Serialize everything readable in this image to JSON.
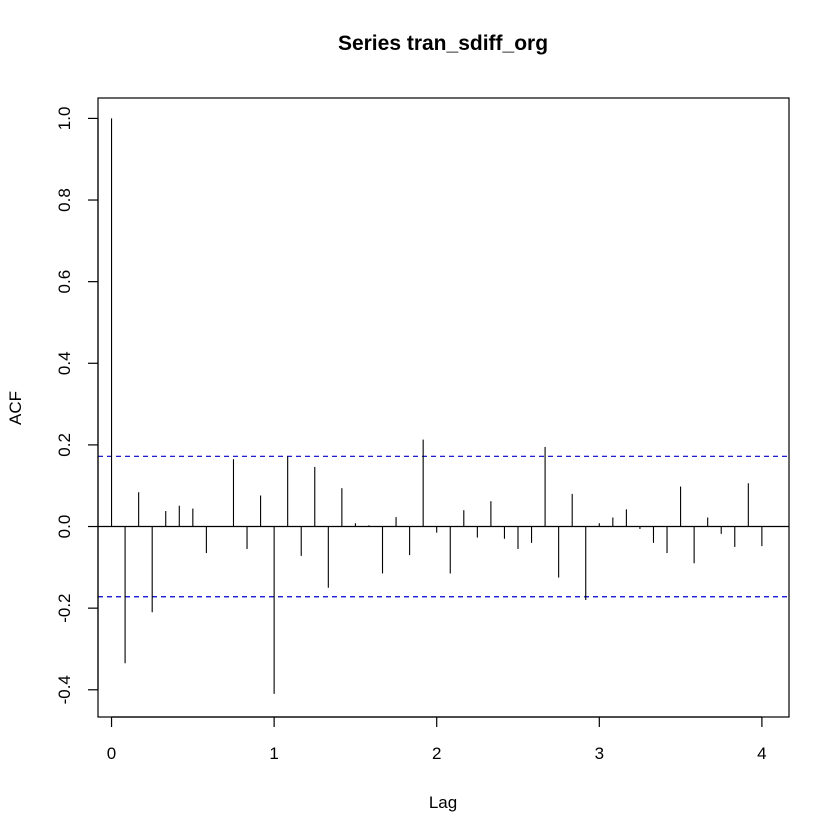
{
  "chart_data": {
    "type": "bar",
    "subtype": "acf-stem",
    "title": "Series  tran_sdiff_org",
    "xlabel": "Lag",
    "ylabel": "ACF",
    "xlim": [
      -0.0833,
      4.1667
    ],
    "ylim": [
      -0.4667,
      1.05
    ],
    "xticks": [
      0,
      1,
      2,
      3,
      4
    ],
    "yticks": [
      -0.4,
      -0.2,
      0.0,
      0.2,
      0.4,
      0.6,
      0.8,
      1.0
    ],
    "ytick_labels": [
      "-0.4",
      "-0.2",
      "0.0",
      "0.2",
      "0.4",
      "0.6",
      "0.8",
      "1.0"
    ],
    "confidence_limit": 0.172,
    "confidence_color": "#0000cc",
    "lag_step": 0.08333,
    "values": [
      1.0,
      -0.335,
      0.084,
      -0.21,
      0.038,
      0.051,
      0.044,
      -0.065,
      0.0,
      0.165,
      -0.055,
      0.076,
      -0.41,
      0.172,
      -0.072,
      0.146,
      -0.15,
      0.094,
      0.008,
      0.003,
      -0.115,
      0.023,
      -0.07,
      0.213,
      -0.015,
      -0.115,
      0.04,
      -0.027,
      0.062,
      -0.03,
      -0.055,
      -0.04,
      0.195,
      -0.125,
      0.08,
      -0.18,
      0.008,
      0.022,
      0.042,
      -0.006,
      -0.04,
      -0.065,
      0.098,
      -0.09,
      0.022,
      -0.018,
      -0.05,
      0.106,
      -0.048
    ]
  }
}
